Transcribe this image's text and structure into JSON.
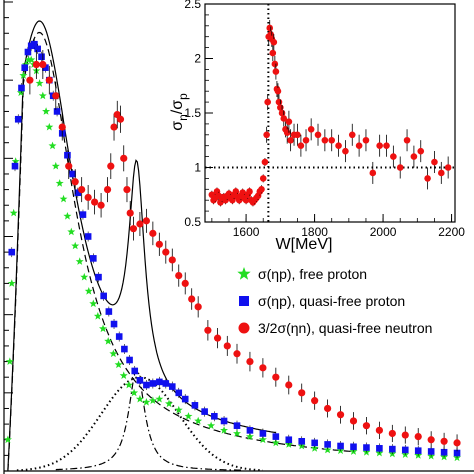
{
  "chart_data": [
    {
      "type": "scatter",
      "title": "",
      "xlim": [
        1480,
        2200
      ],
      "ylim": [
        0,
        30
      ],
      "legend_position": "bottom-right",
      "colors": {
        "free_proton": "#22dd22",
        "quasi_free_proton": "#1010ee",
        "quasi_free_neutron": "#ee1111",
        "curve": "#000000"
      },
      "legend": [
        {
          "label": "σ(ηp), free proton",
          "marker": "star",
          "color": "#22dd22"
        },
        {
          "label": "σ(ηp), quasi-free proton",
          "marker": "square",
          "color": "#1010ee"
        },
        {
          "label": "3/2σ(ηn), quasi-free neutron",
          "marker": "circle",
          "color": "#ee1111"
        }
      ],
      "series": [
        {
          "marker": "star",
          "color": "#22dd22",
          "x": [
            1486,
            1489,
            1492,
            1495,
            1498,
            1502,
            1506,
            1510,
            1514,
            1518,
            1522,
            1526,
            1530,
            1535,
            1540,
            1545,
            1550,
            1555,
            1560,
            1566,
            1572,
            1578,
            1584,
            1590,
            1597,
            1604,
            1611,
            1618,
            1625,
            1633,
            1641,
            1649,
            1657,
            1665,
            1673,
            1681,
            1690,
            1700,
            1710,
            1720,
            1735,
            1750,
            1765,
            1780,
            1800,
            1820,
            1840,
            1860,
            1880,
            1900,
            1920,
            1940,
            1960,
            1980,
            2000,
            2020,
            2040,
            2060,
            2080,
            2100,
            2120,
            2140,
            2160,
            2180
          ],
          "y": [
            2.0,
            7.0,
            12.0,
            16.5,
            19.8,
            22.5,
            24.2,
            25.3,
            26.0,
            26.3,
            26.3,
            26.0,
            25.6,
            24.8,
            24.0,
            23.0,
            22.0,
            20.8,
            19.5,
            18.4,
            17.4,
            16.3,
            15.3,
            14.4,
            13.4,
            12.4,
            11.5,
            10.7,
            9.9,
            9.1,
            8.3,
            7.5,
            6.8,
            6.1,
            5.5,
            5.0,
            4.6,
            4.4,
            4.5,
            4.6,
            4.3,
            3.9,
            3.5,
            3.2,
            2.9,
            2.6,
            2.4,
            2.2,
            2.0,
            1.8,
            1.7,
            1.6,
            1.45,
            1.35,
            1.3,
            1.25,
            1.2,
            1.15,
            1.1,
            1.05,
            1.0,
            0.95,
            0.9,
            0.85
          ]
        },
        {
          "marker": "square",
          "color": "#1010ee",
          "x": [
            1492,
            1497,
            1502,
            1507,
            1512,
            1517,
            1522,
            1527,
            1532,
            1538,
            1544,
            1550,
            1556,
            1562,
            1570,
            1578,
            1586,
            1594,
            1602,
            1610,
            1618,
            1626,
            1634,
            1642,
            1650,
            1658,
            1666,
            1674,
            1682,
            1690,
            1700,
            1710,
            1720,
            1730,
            1740,
            1750,
            1760,
            1775,
            1790,
            1805,
            1820,
            1840,
            1860,
            1880,
            1900,
            1920,
            1940,
            1960,
            1980,
            2000,
            2020,
            2040,
            2060,
            2080,
            2100,
            2120,
            2140,
            2160,
            2180
          ],
          "y": [
            14.0,
            19.5,
            22.5,
            24.5,
            25.8,
            26.8,
            27.2,
            27.3,
            27.0,
            26.5,
            25.8,
            25.0,
            24.0,
            23.0,
            21.6,
            20.2,
            19.0,
            17.8,
            16.4,
            15.0,
            13.6,
            12.4,
            11.2,
            10.2,
            9.4,
            8.6,
            7.8,
            7.1,
            6.4,
            5.8,
            5.5,
            5.6,
            5.7,
            5.6,
            5.4,
            5.0,
            4.6,
            4.2,
            3.8,
            3.5,
            3.2,
            2.9,
            2.6,
            2.4,
            2.2,
            2.0,
            1.9,
            1.8,
            1.7,
            1.6,
            1.55,
            1.5,
            1.45,
            1.4,
            1.35,
            1.3,
            1.25,
            1.2,
            1.15
          ]
        },
        {
          "marker": "circle",
          "color": "#ee1111",
          "x": [
            1520,
            1530,
            1540,
            1550,
            1560,
            1570,
            1580,
            1590,
            1600,
            1610,
            1620,
            1630,
            1640,
            1645,
            1650,
            1655,
            1660,
            1665,
            1670,
            1675,
            1680,
            1690,
            1700,
            1710,
            1720,
            1730,
            1740,
            1750,
            1760,
            1770,
            1780,
            1795,
            1810,
            1825,
            1840,
            1860,
            1880,
            1900,
            1920,
            1940,
            1960,
            1980,
            2000,
            2020,
            2040,
            2060,
            2080,
            2100,
            2120,
            2140,
            2160,
            2180
          ],
          "y": [
            25.0,
            26.0,
            26.0,
            25.0,
            24.0,
            22.0,
            19.5,
            18.5,
            18.0,
            17.5,
            17.2,
            17.0,
            18.0,
            19.5,
            22.0,
            22.8,
            22.5,
            20.0,
            18.0,
            16.5,
            15.5,
            15.8,
            16.0,
            15.2,
            14.5,
            14.0,
            13.5,
            12.5,
            12.0,
            11.0,
            10.5,
            9.0,
            8.5,
            8.0,
            7.5,
            7.0,
            6.6,
            6.0,
            5.5,
            5.0,
            4.5,
            4.0,
            3.6,
            3.2,
            2.9,
            2.6,
            2.4,
            2.3,
            2.2,
            2.0,
            1.9,
            1.8
          ]
        }
      ]
    },
    {
      "type": "scatter",
      "title": "",
      "xlabel": "W[MeV]",
      "ylabel": "σn/σp",
      "ylabel_main": "σ",
      "ylabel_num": "n",
      "ylabel_den": "σ",
      "ylabel_den_sub": "p",
      "xlim": [
        1480,
        2210
      ],
      "ylim": [
        0.5,
        2.5
      ],
      "x_ticks": [
        "1600",
        "1800",
        "2000",
        "2200"
      ],
      "y_ticks": [
        "0.5",
        "1",
        "1.5",
        "2",
        "2.5"
      ],
      "reference_lines": {
        "x": 1665,
        "y": 1
      },
      "series": [
        {
          "marker": "circle",
          "color": "#ee1111",
          "x": [
            1500,
            1505,
            1510,
            1515,
            1520,
            1525,
            1530,
            1535,
            1540,
            1545,
            1550,
            1555,
            1560,
            1565,
            1570,
            1575,
            1580,
            1585,
            1590,
            1595,
            1600,
            1605,
            1610,
            1615,
            1620,
            1625,
            1630,
            1635,
            1640,
            1645,
            1650,
            1655,
            1660,
            1663,
            1666,
            1669,
            1672,
            1675,
            1678,
            1681,
            1684,
            1687,
            1690,
            1693,
            1696,
            1700,
            1705,
            1710,
            1715,
            1720,
            1725,
            1730,
            1740,
            1750,
            1760,
            1775,
            1790,
            1810,
            1830,
            1850,
            1870,
            1890,
            1910,
            1930,
            1950,
            1970,
            1990,
            2010,
            2030,
            2050,
            2070,
            2090,
            2110,
            2130,
            2150,
            2170,
            2190
          ],
          "y": [
            0.75,
            0.7,
            0.72,
            0.78,
            0.74,
            0.68,
            0.72,
            0.73,
            0.7,
            0.74,
            0.76,
            0.72,
            0.7,
            0.75,
            0.78,
            0.73,
            0.7,
            0.74,
            0.77,
            0.72,
            0.7,
            0.75,
            0.78,
            0.7,
            0.68,
            0.7,
            0.72,
            0.74,
            0.78,
            0.8,
            0.9,
            1.05,
            1.3,
            1.6,
            2.2,
            2.28,
            2.22,
            2.18,
            2.05,
            2.15,
            1.95,
            1.88,
            1.72,
            1.7,
            1.6,
            1.55,
            1.5,
            1.45,
            1.35,
            1.32,
            1.42,
            1.25,
            1.3,
            1.3,
            1.2,
            1.25,
            1.35,
            1.3,
            1.25,
            1.25,
            1.2,
            1.15,
            1.3,
            1.2,
            1.25,
            0.95,
            1.2,
            1.2,
            1.1,
            1.0,
            1.25,
            1.1,
            1.15,
            0.9,
            1.05,
            0.95,
            1.0
          ]
        }
      ]
    }
  ]
}
